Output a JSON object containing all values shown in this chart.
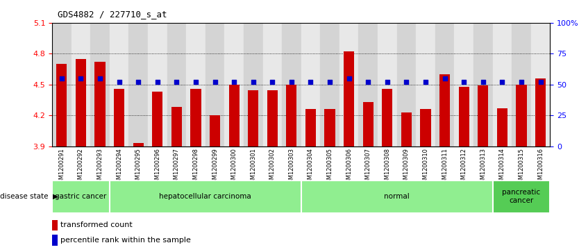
{
  "title": "GDS4882 / 227710_s_at",
  "samples": [
    "GSM1200291",
    "GSM1200292",
    "GSM1200293",
    "GSM1200294",
    "GSM1200295",
    "GSM1200296",
    "GSM1200297",
    "GSM1200298",
    "GSM1200299",
    "GSM1200300",
    "GSM1200301",
    "GSM1200302",
    "GSM1200303",
    "GSM1200304",
    "GSM1200305",
    "GSM1200306",
    "GSM1200307",
    "GSM1200308",
    "GSM1200309",
    "GSM1200310",
    "GSM1200311",
    "GSM1200312",
    "GSM1200313",
    "GSM1200314",
    "GSM1200315",
    "GSM1200316"
  ],
  "bar_values": [
    4.7,
    4.75,
    4.72,
    4.46,
    3.93,
    4.43,
    4.28,
    4.46,
    4.2,
    4.5,
    4.44,
    4.44,
    4.5,
    4.26,
    4.26,
    4.82,
    4.33,
    4.46,
    4.23,
    4.26,
    4.6,
    4.48,
    4.49,
    4.27,
    4.5,
    4.56
  ],
  "percentile_values": [
    55,
    55,
    55,
    52,
    52,
    52,
    52,
    52,
    52,
    52,
    52,
    52,
    52,
    52,
    52,
    55,
    52,
    52,
    52,
    52,
    55,
    52,
    52,
    52,
    52,
    52
  ],
  "disease_groups": [
    {
      "label": "gastric cancer",
      "start": 0,
      "end": 2,
      "color": "#90EE90"
    },
    {
      "label": "hepatocellular carcinoma",
      "start": 3,
      "end": 12,
      "color": "#90EE90"
    },
    {
      "label": "normal",
      "start": 13,
      "end": 22,
      "color": "#90EE90"
    },
    {
      "label": "pancreatic\ncancer",
      "start": 23,
      "end": 25,
      "color": "#55CC55"
    }
  ],
  "ylim_left": [
    3.9,
    5.1
  ],
  "ylim_right": [
    0,
    100
  ],
  "bar_color": "#CC0000",
  "dot_color": "#0000CC",
  "bar_bottom": 3.9,
  "yticks_left": [
    3.9,
    4.2,
    4.5,
    4.8,
    5.1
  ],
  "yticks_right": [
    0,
    25,
    50,
    75,
    100
  ],
  "grid_values": [
    4.2,
    4.5,
    4.8
  ],
  "xtick_bg_even": "#d4d4d4",
  "xtick_bg_odd": "#e8e8e8"
}
